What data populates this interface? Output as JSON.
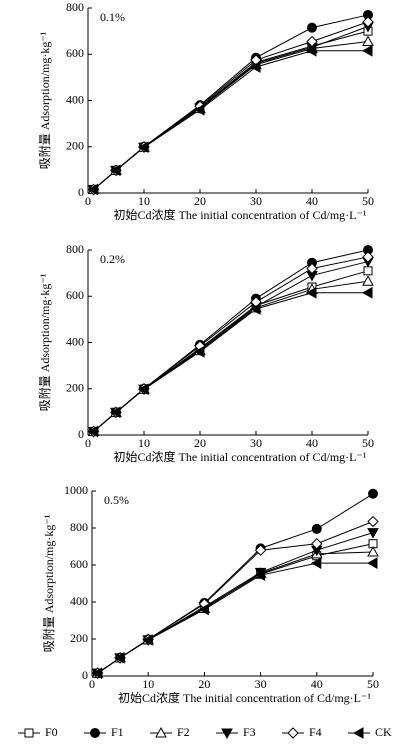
{
  "chart_data": [
    {
      "type": "line",
      "annotation": "0.1%",
      "x_label": "初始Cd浓度 The initial concentration of Cd/mg·L⁻¹",
      "y_label": "吸附量 Adsorption/mg·kg⁻¹",
      "x": [
        1,
        5,
        10,
        20,
        30,
        40,
        50
      ],
      "xlim": [
        0,
        50
      ],
      "xticks": [
        0,
        10,
        20,
        30,
        40,
        50
      ],
      "ylim": [
        0,
        800
      ],
      "yticks": [
        0,
        200,
        400,
        600,
        800
      ],
      "series": [
        {
          "name": "F0",
          "color": "#000000",
          "marker": "square",
          "filled": false,
          "values": [
            15,
            98,
            198,
            370,
            565,
            635,
            700
          ]
        },
        {
          "name": "F1",
          "color": "#000000",
          "marker": "circle",
          "filled": true,
          "values": [
            15,
            98,
            200,
            380,
            585,
            715,
            770
          ]
        },
        {
          "name": "F2",
          "color": "#000000",
          "marker": "triangle-up",
          "filled": false,
          "values": [
            15,
            98,
            198,
            365,
            555,
            625,
            655
          ]
        },
        {
          "name": "F3",
          "color": "#000000",
          "marker": "triangle-down",
          "filled": true,
          "values": [
            15,
            98,
            198,
            368,
            560,
            630,
            720
          ]
        },
        {
          "name": "F4",
          "color": "#000000",
          "marker": "diamond",
          "filled": false,
          "values": [
            15,
            98,
            200,
            375,
            575,
            655,
            740
          ]
        },
        {
          "name": "CK",
          "color": "#000000",
          "marker": "triangle-left",
          "filled": true,
          "values": [
            15,
            98,
            198,
            360,
            545,
            615,
            615
          ]
        }
      ]
    },
    {
      "type": "line",
      "annotation": "0.2%",
      "x_label": "初始Cd浓度 The initial concentration of Cd/mg·L⁻¹",
      "y_label": "吸附量 Adsorption/mg·kg⁻¹",
      "x": [
        1,
        5,
        10,
        20,
        30,
        40,
        50
      ],
      "xlim": [
        0,
        50
      ],
      "xticks": [
        0,
        10,
        20,
        30,
        40,
        50
      ],
      "ylim": [
        0,
        800
      ],
      "yticks": [
        0,
        200,
        400,
        600,
        800
      ],
      "series": [
        {
          "name": "F0",
          "color": "#000000",
          "marker": "square",
          "filled": false,
          "values": [
            15,
            98,
            198,
            375,
            560,
            640,
            710
          ]
        },
        {
          "name": "F1",
          "color": "#000000",
          "marker": "circle",
          "filled": true,
          "values": [
            15,
            98,
            200,
            390,
            590,
            745,
            800
          ]
        },
        {
          "name": "F2",
          "color": "#000000",
          "marker": "triangle-up",
          "filled": false,
          "values": [
            15,
            98,
            198,
            365,
            550,
            630,
            665
          ]
        },
        {
          "name": "F3",
          "color": "#000000",
          "marker": "triangle-down",
          "filled": true,
          "values": [
            15,
            98,
            198,
            370,
            555,
            690,
            750
          ]
        },
        {
          "name": "F4",
          "color": "#000000",
          "marker": "diamond",
          "filled": false,
          "values": [
            15,
            98,
            200,
            385,
            575,
            720,
            770
          ]
        },
        {
          "name": "CK",
          "color": "#000000",
          "marker": "triangle-left",
          "filled": true,
          "values": [
            15,
            98,
            198,
            360,
            545,
            615,
            615
          ]
        }
      ]
    },
    {
      "type": "line",
      "annotation": "0.5%",
      "x_label": "初始Cd浓度 The initial concentration of Cd/mg·L⁻¹",
      "y_label": "吸附量 Adsorption/mg·kg⁻¹",
      "x": [
        1,
        5,
        10,
        20,
        30,
        40,
        50
      ],
      "xlim": [
        0,
        50
      ],
      "xticks": [
        0,
        10,
        20,
        30,
        40,
        50
      ],
      "ylim": [
        0,
        1000
      ],
      "yticks": [
        0,
        200,
        400,
        600,
        800,
        1000
      ],
      "series": [
        {
          "name": "F0",
          "color": "#000000",
          "marker": "square",
          "filled": false,
          "values": [
            15,
            98,
            195,
            370,
            550,
            650,
            715
          ]
        },
        {
          "name": "F1",
          "color": "#000000",
          "marker": "circle",
          "filled": true,
          "values": [
            15,
            98,
            198,
            395,
            690,
            795,
            985
          ]
        },
        {
          "name": "F2",
          "color": "#000000",
          "marker": "triangle-up",
          "filled": false,
          "values": [
            15,
            98,
            195,
            365,
            555,
            660,
            670
          ]
        },
        {
          "name": "F3",
          "color": "#000000",
          "marker": "triangle-down",
          "filled": true,
          "values": [
            15,
            98,
            195,
            375,
            560,
            680,
            775
          ]
        },
        {
          "name": "F4",
          "color": "#000000",
          "marker": "diamond",
          "filled": false,
          "values": [
            15,
            98,
            198,
            390,
            680,
            715,
            835
          ]
        },
        {
          "name": "CK",
          "color": "#000000",
          "marker": "triangle-left",
          "filled": true,
          "values": [
            15,
            98,
            195,
            360,
            545,
            610,
            610
          ]
        }
      ]
    }
  ]
}
